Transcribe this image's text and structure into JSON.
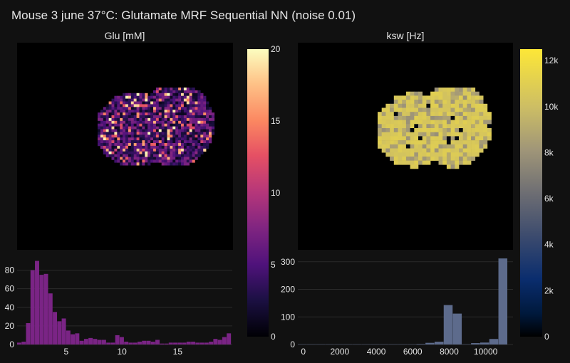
{
  "title": "Mouse 3 june 37°C: Glutamate MRF Sequential NN (noise 0.01)",
  "colors": {
    "background": "#111111",
    "grid": "#2b2b2b",
    "glu_hist": "#7a2485",
    "ksw_hist": "#5d6b8c"
  },
  "chart_data": [
    {
      "type": "heatmap",
      "title": "Glu [mM]",
      "colorscale": "magma",
      "colorbar": {
        "range": [
          0,
          20
        ],
        "tick_values": [
          0,
          5,
          10,
          15,
          20
        ],
        "tick_labels": [
          "0",
          "5",
          "10",
          "15",
          "20"
        ]
      }
    },
    {
      "type": "heatmap",
      "title": "ksw [Hz]",
      "colorscale": "cividis",
      "colorbar": {
        "range": [
          0,
          12500
        ],
        "tick_values": [
          0,
          2000,
          4000,
          6000,
          8000,
          10000,
          12000
        ],
        "tick_labels": [
          "0",
          "2k",
          "4k",
          "6k",
          "8k",
          "10k",
          "12k"
        ]
      }
    },
    {
      "type": "bar",
      "subtype": "histogram",
      "xlim": [
        0.6,
        19.9
      ],
      "ylim": [
        0,
        95
      ],
      "x_tick_values": [
        5,
        10,
        15
      ],
      "x_tick_labels": [
        "5",
        "10",
        "15"
      ],
      "y_tick_values": [
        0,
        20,
        40,
        60,
        80
      ],
      "y_tick_labels": [
        "0",
        "20",
        "40",
        "60",
        "80"
      ],
      "bin_start": 0.6,
      "bin_width": 0.4,
      "values": [
        2,
        3,
        23,
        80,
        90,
        75,
        76,
        55,
        35,
        25,
        28,
        15,
        11,
        12,
        4,
        6,
        7,
        6,
        5,
        5,
        2,
        2,
        10,
        8,
        3,
        2,
        2,
        3,
        4,
        4,
        3,
        5,
        1,
        1,
        2,
        2,
        2,
        2,
        3,
        3,
        2,
        2,
        2,
        3,
        6,
        5,
        8,
        12
      ]
    },
    {
      "type": "bar",
      "subtype": "histogram",
      "xlim": [
        -300,
        11500
      ],
      "ylim": [
        0,
        320
      ],
      "x_tick_values": [
        0,
        2000,
        4000,
        6000,
        8000,
        10000
      ],
      "x_tick_labels": [
        "0",
        "2000",
        "4000",
        "6000",
        "8000",
        "10000"
      ],
      "y_tick_values": [
        0,
        100,
        200,
        300
      ],
      "y_tick_labels": [
        "0",
        "100",
        "200",
        "300"
      ],
      "bin_start": -300,
      "bin_width": 500,
      "values": [
        1,
        1,
        1,
        1,
        1,
        1,
        1,
        1,
        1,
        1,
        1,
        1,
        1,
        2,
        6,
        10,
        143,
        112,
        1,
        5,
        7,
        20,
        312
      ]
    }
  ]
}
